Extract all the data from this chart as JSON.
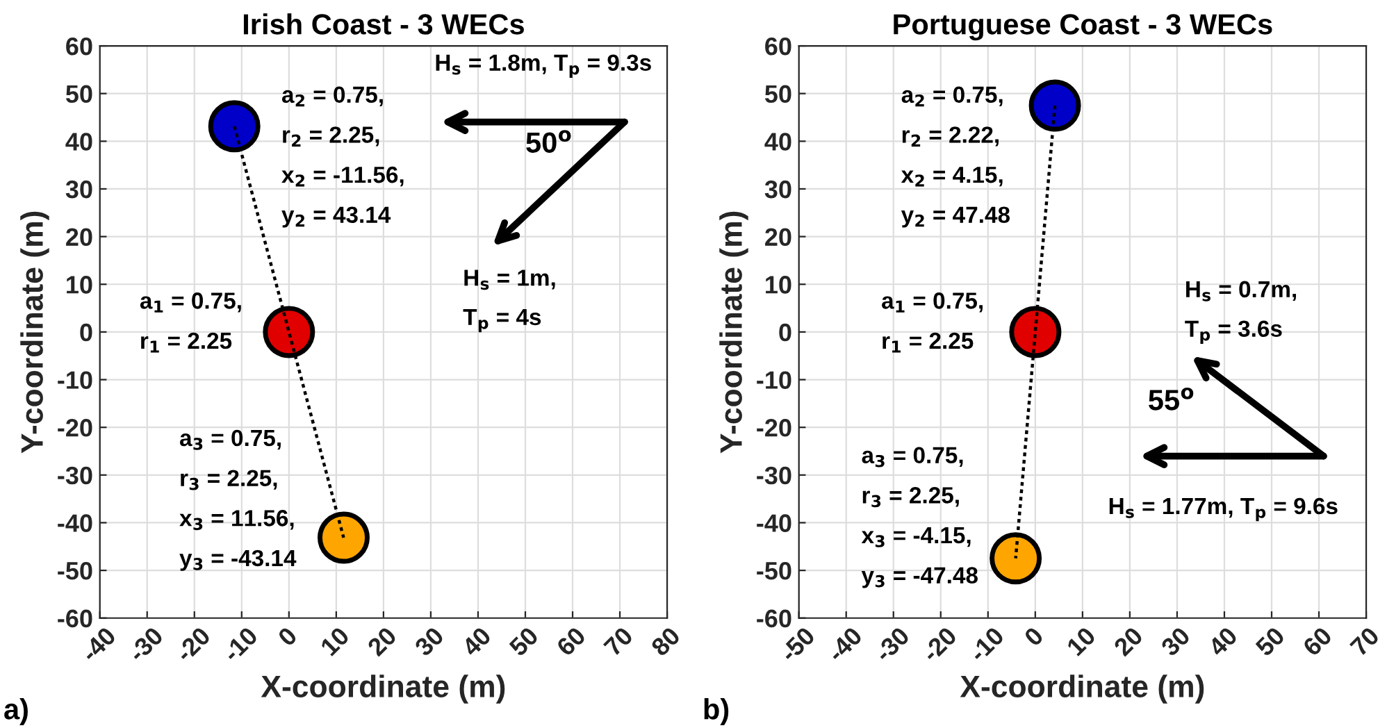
{
  "chart_data": [
    {
      "type": "scatter",
      "title": "Irish Coast - 3 WECs",
      "xlabel": "X-coordinate (m)",
      "ylabel": "Y-coordinate (m)",
      "xlim": [
        -40,
        80
      ],
      "xticks": [
        -40,
        -30,
        -20,
        -10,
        0,
        10,
        20,
        30,
        40,
        50,
        60,
        70,
        80
      ],
      "ylim": [
        -60,
        60
      ],
      "yticks": [
        -60,
        -50,
        -40,
        -30,
        -20,
        -10,
        0,
        10,
        20,
        30,
        40,
        50,
        60
      ],
      "grid": true,
      "series": [
        {
          "type": "line",
          "color": "#000000",
          "line_style": "dotted",
          "marker": "none",
          "x": [
            -11.56,
            0,
            11.56
          ],
          "values": [
            43.14,
            0,
            -43.14
          ]
        },
        {
          "marker": "circle",
          "x": [
            0,
            -11.56,
            11.56
          ],
          "values": [
            0,
            43.14,
            -43.14
          ],
          "colors": [
            "#e00000",
            "#0000c8",
            "#ffa500"
          ]
        }
      ],
      "annotations": [
        "a$_{2}$ = 0.75,",
        "r$_{2}$ = 2.25,",
        "x$_{2}$ = -11.56,",
        "y$_{2}$ = 43.14",
        "a$_{1}$ = 0.75,",
        "r$_{1}$ = 2.25",
        "a$_{3}$ = 0.75,",
        "r$_{3}$ = 2.25,",
        "x$_{3}$ = 11.56,",
        "y$_{3}$ = -43.14",
        "H$_{s}$ = 1.8m, T$_{p}$ = 9.3s",
        "50$^{o}$",
        "H$_{s}$ = 1m,",
        "T$_{p}$ = 4s",
        "a)"
      ]
    },
    {
      "type": "scatter",
      "title": "Portuguese Coast - 3 WECs",
      "xlabel": "X-coordinate (m)",
      "ylabel": "Y-coordinate (m)",
      "xlim": [
        -50,
        70
      ],
      "xticks": [
        -50,
        -40,
        -30,
        -20,
        -10,
        0,
        10,
        20,
        30,
        40,
        50,
        60,
        70
      ],
      "ylim": [
        -60,
        60
      ],
      "yticks": [
        -60,
        -50,
        -40,
        -30,
        -20,
        -10,
        0,
        10,
        20,
        30,
        40,
        50,
        60
      ],
      "grid": true,
      "series": [
        {
          "type": "line",
          "color": "#000000",
          "line_style": "dotted",
          "marker": "none",
          "x": [
            4.15,
            0,
            -4.15
          ],
          "values": [
            47.48,
            0,
            -47.48
          ]
        },
        {
          "marker": "circle",
          "x": [
            0,
            4.15,
            -4.15
          ],
          "values": [
            0,
            47.48,
            -47.48
          ],
          "colors": [
            "#e00000",
            "#0000c8",
            "#ffa500"
          ]
        }
      ],
      "annotations": [
        "a$_{2}$ = 0.75,",
        "r$_{2}$ = 2.22,",
        "x$_{2}$ = 4.15,",
        "y$_{2}$ = 47.48",
        "a$_{1}$ = 0.75,",
        "r$_{1}$ = 2.25",
        "a$_{3}$ = 0.75,",
        "r$_{3}$ = 2.25,",
        "x$_{3}$ = -4.15,",
        "y$_{3}$ = -47.48",
        "H$_{s}$ = 0.7m,",
        "T$_{p}$ = 3.6s",
        "55$^{o}$",
        "H$_{s}$ = 1.77m, T$_{p}$ = 9.6s",
        "b)"
      ]
    }
  ]
}
